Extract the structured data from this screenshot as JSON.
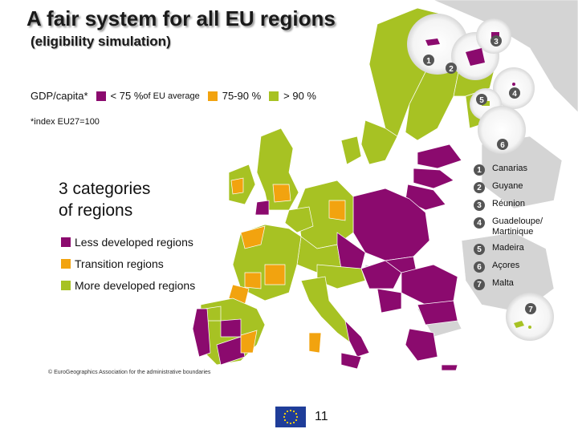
{
  "title": "A fair system for all EU regions",
  "subtitle": "(eligibility simulation)",
  "gdp_legend": {
    "label": "GDP/capita*",
    "items": [
      {
        "text": "< 75 %",
        "suffix": " of EU average",
        "color": "#8b0a6e"
      },
      {
        "text": "75-90 %",
        "suffix": "",
        "color": "#f2a30f"
      },
      {
        "text": "> 90 %",
        "suffix": "",
        "color": "#a7c223"
      }
    ]
  },
  "index_note": "*index EU27=100",
  "categories_title": [
    "3 categories",
    "of regions"
  ],
  "categories": [
    {
      "label": "Less developed regions",
      "color": "#8b0a6e"
    },
    {
      "label": "Transition regions",
      "color": "#f2a30f"
    },
    {
      "label": "More developed regions",
      "color": "#a7c223"
    }
  ],
  "outermost_regions": [
    {
      "num": "1",
      "name": "Canarias"
    },
    {
      "num": "2",
      "name": "Guyane"
    },
    {
      "num": "3",
      "name": "Réunion"
    },
    {
      "num": "4",
      "name": "Guadeloupe/ Martinique"
    },
    {
      "num": "5",
      "name": "Madeira"
    },
    {
      "num": "6",
      "name": "Açores"
    },
    {
      "num": "7",
      "name": "Malta"
    }
  ],
  "inset_numbers": [
    "1",
    "2",
    "3",
    "4",
    "5",
    "6",
    "7"
  ],
  "copyright": "© EuroGeographics Association for the administrative boundaries",
  "page_number": "11",
  "colors": {
    "less_developed": "#8b0a6e",
    "transition": "#f2a30f",
    "more_developed": "#a7c223",
    "non_eu": "#d9d9d9",
    "sea": "#ffffff"
  }
}
